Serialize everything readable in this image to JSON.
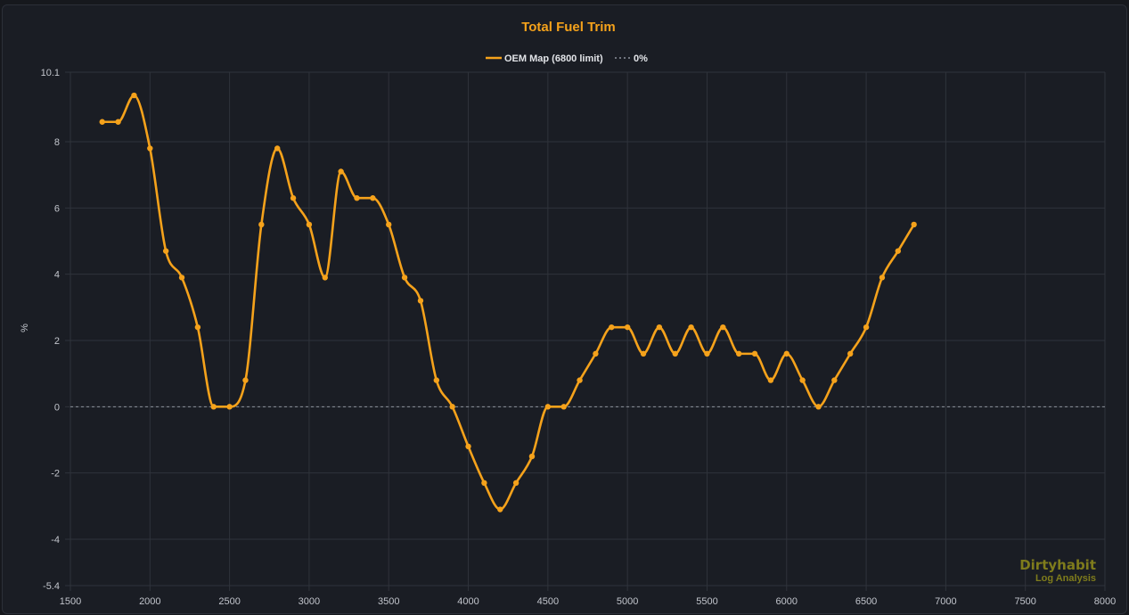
{
  "colors": {
    "background": "#1a1d24",
    "grid": "#2f333b",
    "axis_text": "#c2c5cc",
    "title": "#f5a21b",
    "series": "#f5a21b",
    "zero_line": "#8d929b",
    "legend_text": "#e2e4e8",
    "watermark": "#7f7c1c"
  },
  "chart_data": {
    "type": "line",
    "title": "Total Fuel Trim",
    "xlabel": "",
    "ylabel": "%",
    "xlim": [
      1500,
      8000
    ],
    "ylim": [
      -5.4,
      10.1
    ],
    "x_ticks": [
      1500,
      2000,
      2500,
      3000,
      3500,
      4000,
      4500,
      5000,
      5500,
      6000,
      6500,
      7000,
      7500,
      8000
    ],
    "y_ticks": [
      -5.4,
      -4,
      -2,
      0,
      2,
      4,
      6,
      8,
      10.1
    ],
    "grid": true,
    "legend_position": "top-center",
    "series": [
      {
        "name": "OEM Map (6800 limit)",
        "style": "solid",
        "markers": true,
        "x": [
          1700,
          1800,
          1900,
          2000,
          2100,
          2200,
          2300,
          2400,
          2500,
          2600,
          2700,
          2800,
          2900,
          3000,
          3100,
          3200,
          3300,
          3400,
          3500,
          3600,
          3700,
          3800,
          3900,
          4000,
          4100,
          4200,
          4300,
          4400,
          4500,
          4600,
          4700,
          4800,
          4900,
          5000,
          5100,
          5200,
          5300,
          5400,
          5500,
          5600,
          5700,
          5800,
          5900,
          6000,
          6100,
          6200,
          6300,
          6400,
          6500,
          6600,
          6700,
          6800
        ],
        "y": [
          8.6,
          8.6,
          9.4,
          7.8,
          4.7,
          3.9,
          2.4,
          0.0,
          0.0,
          0.8,
          5.5,
          7.8,
          6.3,
          5.5,
          3.9,
          7.1,
          6.3,
          6.3,
          5.5,
          3.9,
          3.2,
          0.8,
          0.0,
          -1.2,
          -2.3,
          -3.1,
          -2.3,
          -1.5,
          0.0,
          0.0,
          0.8,
          1.6,
          2.4,
          2.4,
          1.6,
          2.4,
          1.6,
          2.4,
          1.6,
          2.4,
          1.6,
          1.6,
          0.8,
          1.6,
          0.8,
          0.0,
          0.8,
          1.6,
          2.4,
          3.9,
          4.7,
          5.5
        ]
      },
      {
        "name": "0%",
        "style": "dashed",
        "markers": false,
        "x": [
          1500,
          8000
        ],
        "y": [
          0,
          0
        ]
      }
    ]
  },
  "watermark": {
    "main": "Dirtyhabit",
    "sub": "Log Analysis"
  }
}
